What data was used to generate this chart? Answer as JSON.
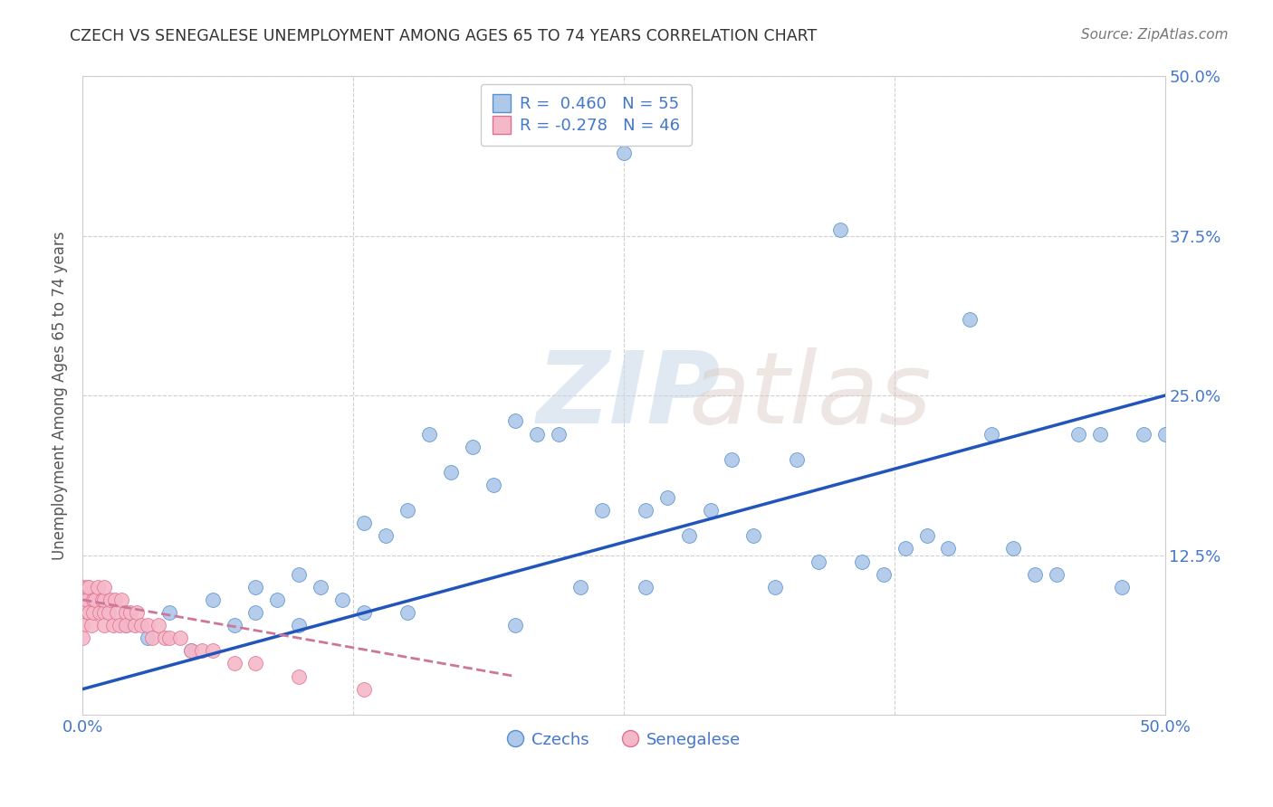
{
  "title": "CZECH VS SENEGALESE UNEMPLOYMENT AMONG AGES 65 TO 74 YEARS CORRELATION CHART",
  "source": "Source: ZipAtlas.com",
  "ylabel": "Unemployment Among Ages 65 to 74 years",
  "xlim": [
    0.0,
    0.5
  ],
  "ylim": [
    0.0,
    0.5
  ],
  "xticks": [
    0.0,
    0.125,
    0.25,
    0.375,
    0.5
  ],
  "xticklabels": [
    "0.0%",
    "",
    "",
    "",
    "50.0%"
  ],
  "yticks_right": [
    0.0,
    0.125,
    0.25,
    0.375,
    0.5
  ],
  "yticklabels_right": [
    "",
    "12.5%",
    "25.0%",
    "37.5%",
    "50.0%"
  ],
  "czech_color": "#adc8e8",
  "senegal_color": "#f5b8c8",
  "czech_edge_color": "#5590d0",
  "senegal_edge_color": "#e07090",
  "czech_line_color": "#2255bb",
  "senegal_line_color": "#cc7799",
  "background_color": "#ffffff",
  "grid_color": "#d0d0d0",
  "title_color": "#333333",
  "axis_tick_color": "#4477cc",
  "source_color": "#777777",
  "ylabel_color": "#555555",
  "watermark_color": "#c8d8e8",
  "legend_label_czech": "R =  0.460   N = 55",
  "legend_label_senegal": "R = -0.278   N = 46",
  "legend_czech": "Czechs",
  "legend_senegal": "Senegalese",
  "czech_x": [
    0.02,
    0.03,
    0.04,
    0.05,
    0.06,
    0.07,
    0.08,
    0.08,
    0.09,
    0.1,
    0.1,
    0.11,
    0.12,
    0.13,
    0.13,
    0.14,
    0.15,
    0.15,
    0.16,
    0.17,
    0.18,
    0.19,
    0.2,
    0.2,
    0.21,
    0.22,
    0.23,
    0.24,
    0.25,
    0.26,
    0.26,
    0.27,
    0.28,
    0.29,
    0.3,
    0.31,
    0.32,
    0.33,
    0.34,
    0.35,
    0.36,
    0.37,
    0.38,
    0.39,
    0.4,
    0.41,
    0.42,
    0.43,
    0.44,
    0.45,
    0.46,
    0.47,
    0.48,
    0.49,
    0.5
  ],
  "czech_y": [
    0.07,
    0.06,
    0.08,
    0.05,
    0.09,
    0.07,
    0.08,
    0.1,
    0.09,
    0.07,
    0.11,
    0.1,
    0.09,
    0.15,
    0.08,
    0.14,
    0.16,
    0.08,
    0.22,
    0.19,
    0.21,
    0.18,
    0.23,
    0.07,
    0.22,
    0.22,
    0.1,
    0.16,
    0.44,
    0.16,
    0.1,
    0.17,
    0.14,
    0.16,
    0.2,
    0.14,
    0.1,
    0.2,
    0.12,
    0.38,
    0.12,
    0.11,
    0.13,
    0.14,
    0.13,
    0.31,
    0.22,
    0.13,
    0.11,
    0.11,
    0.22,
    0.22,
    0.1,
    0.22,
    0.22
  ],
  "senegal_x": [
    0.0,
    0.0,
    0.0,
    0.0,
    0.0,
    0.002,
    0.002,
    0.003,
    0.003,
    0.004,
    0.005,
    0.005,
    0.006,
    0.007,
    0.008,
    0.009,
    0.01,
    0.01,
    0.01,
    0.01,
    0.012,
    0.013,
    0.014,
    0.015,
    0.016,
    0.017,
    0.018,
    0.02,
    0.02,
    0.022,
    0.024,
    0.025,
    0.027,
    0.03,
    0.032,
    0.035,
    0.038,
    0.04,
    0.045,
    0.05,
    0.055,
    0.06,
    0.07,
    0.08,
    0.1,
    0.13
  ],
  "senegal_y": [
    0.1,
    0.09,
    0.08,
    0.07,
    0.06,
    0.1,
    0.09,
    0.08,
    0.1,
    0.07,
    0.09,
    0.08,
    0.09,
    0.1,
    0.08,
    0.09,
    0.08,
    0.09,
    0.07,
    0.1,
    0.08,
    0.09,
    0.07,
    0.09,
    0.08,
    0.07,
    0.09,
    0.08,
    0.07,
    0.08,
    0.07,
    0.08,
    0.07,
    0.07,
    0.06,
    0.07,
    0.06,
    0.06,
    0.06,
    0.05,
    0.05,
    0.05,
    0.04,
    0.04,
    0.03,
    0.02
  ],
  "czech_line_x": [
    0.0,
    0.5
  ],
  "czech_line_y": [
    0.02,
    0.25
  ],
  "senegal_line_x": [
    0.0,
    0.2
  ],
  "senegal_line_y": [
    0.09,
    0.03
  ]
}
